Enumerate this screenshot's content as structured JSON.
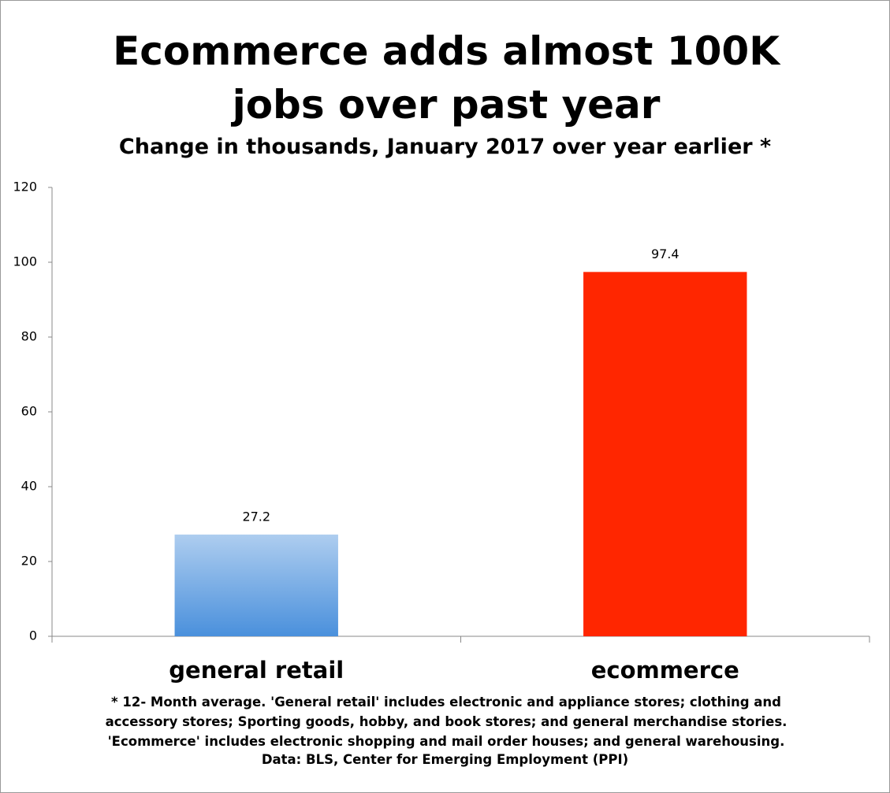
{
  "chart_data": {
    "type": "bar",
    "title": "Ecommerce adds almost 100K jobs over past year",
    "subtitle": "Change in thousands, January 2017 over year earlier *",
    "categories": [
      "general retail",
      "ecommerce"
    ],
    "values": [
      27.2,
      97.4
    ],
    "colors": [
      "#4a90dc",
      "#ff2600"
    ],
    "ylim": [
      0,
      120
    ],
    "yticks": [
      0,
      20,
      40,
      60,
      80,
      100,
      120
    ],
    "grid": false,
    "footnote": "* 12- Month average. 'General retail' includes electronic and appliance stores; clothing and accessory stores; Sporting goods, hobby, and book stores; and general merchandise stories. 'Ecommerce' includes electronic shopping and mail order houses; and general warehousing.",
    "source": "Data: BLS, Center for Emerging Employment (PPI)"
  }
}
